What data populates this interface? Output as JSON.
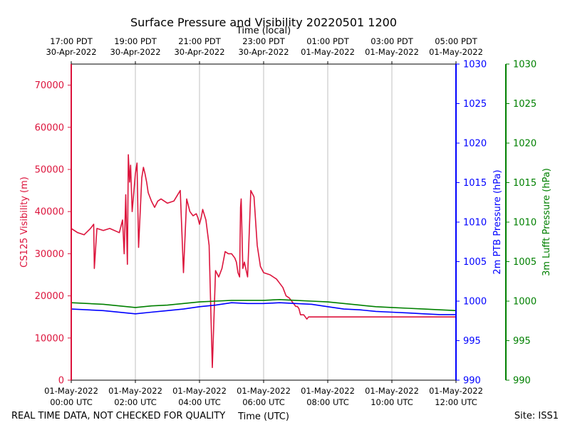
{
  "chart_data": {
    "type": "line",
    "title": "Surface Pressure and Visibility 20220501 1200",
    "top_axis_label": "Time (local)",
    "bottom_axis_label": "Time (UTC)",
    "footer_left": "REAL TIME DATA, NOT CHECKED FOR QUALITY",
    "footer_right": "Site: ISS1",
    "x_range_hours": [
      0,
      12
    ],
    "grid": "vertical",
    "x_ticks": [
      {
        "hour": 0,
        "utc": [
          "01-May-2022",
          "00:00 UTC"
        ],
        "local": [
          "17:00 PDT",
          "30-Apr-2022"
        ]
      },
      {
        "hour": 2,
        "utc": [
          "01-May-2022",
          "02:00 UTC"
        ],
        "local": [
          "19:00 PDT",
          "30-Apr-2022"
        ]
      },
      {
        "hour": 4,
        "utc": [
          "01-May-2022",
          "04:00 UTC"
        ],
        "local": [
          "21:00 PDT",
          "30-Apr-2022"
        ]
      },
      {
        "hour": 6,
        "utc": [
          "01-May-2022",
          "06:00 UTC"
        ],
        "local": [
          "23:00 PDT",
          "30-Apr-2022"
        ]
      },
      {
        "hour": 8,
        "utc": [
          "01-May-2022",
          "08:00 UTC"
        ],
        "local": [
          "01:00 PDT",
          "01-May-2022"
        ]
      },
      {
        "hour": 10,
        "utc": [
          "01-May-2022",
          "10:00 UTC"
        ],
        "local": [
          "03:00 PDT",
          "01-May-2022"
        ]
      },
      {
        "hour": 12,
        "utc": [
          "01-May-2022",
          "12:00 UTC"
        ],
        "local": [
          "05:00 PDT",
          "01-May-2022"
        ]
      }
    ],
    "y_left": {
      "label": "CS125 Visibility (m)",
      "color": "#dc143c",
      "range": [
        0,
        75000
      ],
      "ticks": [
        "0",
        "10000",
        "20000",
        "30000",
        "40000",
        "50000",
        "60000",
        "70000"
      ],
      "tick_values": [
        0,
        10000,
        20000,
        30000,
        40000,
        50000,
        60000,
        70000
      ]
    },
    "y_right": {
      "label": "2m PTB Pressure (hPa)",
      "color": "#0000ff",
      "range": [
        990,
        1030
      ],
      "ticks": [
        "990",
        "995",
        "1000",
        "1005",
        "1010",
        "1015",
        "1020",
        "1025",
        "1030"
      ],
      "tick_values": [
        990,
        995,
        1000,
        1005,
        1010,
        1015,
        1020,
        1025,
        1030
      ]
    },
    "y_right2": {
      "label": "3m Lufft Pressure (hPa)",
      "color": "#008000",
      "range": [
        990,
        1030
      ],
      "ticks": [
        "990",
        "995",
        "1000",
        "1005",
        "1010",
        "1015",
        "1020",
        "1025",
        "1030"
      ],
      "tick_values": [
        990,
        995,
        1000,
        1005,
        1010,
        1015,
        1020,
        1025,
        1030
      ]
    },
    "series": [
      {
        "name": "CS125 Visibility",
        "axis": "left",
        "color": "#dc143c",
        "x": [
          0,
          0.2,
          0.4,
          0.6,
          0.7,
          0.72,
          0.8,
          1.0,
          1.2,
          1.5,
          1.6,
          1.65,
          1.7,
          1.75,
          1.78,
          1.82,
          1.85,
          1.9,
          2.0,
          2.05,
          2.1,
          2.2,
          2.25,
          2.3,
          2.35,
          2.4,
          2.5,
          2.6,
          2.7,
          2.8,
          3.0,
          3.2,
          3.4,
          3.5,
          3.6,
          3.7,
          3.8,
          3.9,
          3.95,
          4.0,
          4.05,
          4.1,
          4.2,
          4.3,
          4.4,
          4.5,
          4.6,
          4.7,
          4.8,
          4.9,
          5.0,
          5.1,
          5.15,
          5.2,
          5.25,
          5.28,
          5.3,
          5.35,
          5.4,
          5.5,
          5.6,
          5.7,
          5.8,
          5.9,
          6.0,
          6.2,
          6.3,
          6.4,
          6.5,
          6.6,
          6.7,
          6.8,
          6.85,
          6.9,
          6.95,
          7.0,
          7.05,
          7.1,
          7.15,
          7.2,
          7.25,
          7.3,
          7.35,
          7.4,
          7.5,
          7.6,
          7.7,
          7.8,
          8.0,
          8.2,
          8.4,
          8.6,
          8.8,
          9.0,
          9.2,
          9.4,
          9.6,
          9.8,
          10.0,
          10.2,
          10.4,
          10.6,
          10.8,
          11.0,
          11.2,
          11.4,
          11.6,
          11.8,
          12.0
        ],
        "values": [
          36000,
          35000,
          34500,
          36000,
          37000,
          26500,
          36000,
          35500,
          36000,
          35000,
          38000,
          30000,
          44000,
          27500,
          53500,
          47000,
          51000,
          40000,
          49000,
          51500,
          31500,
          48000,
          50500,
          49000,
          47000,
          44500,
          42500,
          41000,
          42500,
          43000,
          42000,
          42500,
          45000,
          25500,
          43000,
          40000,
          39000,
          39500,
          38500,
          37000,
          38500,
          40500,
          38000,
          32000,
          3000,
          26000,
          24500,
          26500,
          30500,
          30000,
          30000,
          29000,
          28000,
          25500,
          24500,
          41000,
          43000,
          26500,
          28000,
          24500,
          45000,
          43500,
          32000,
          27000,
          25500,
          25000,
          24500,
          24000,
          23000,
          22000,
          20000,
          19500,
          19000,
          18500,
          18000,
          17500,
          17500,
          17000,
          15500,
          15500,
          15500,
          15000,
          14500,
          15000,
          15000,
          15000,
          15000,
          15000,
          15000,
          15000,
          15000,
          15000,
          15000,
          15000,
          15000,
          15000,
          15000,
          15000,
          15000,
          15000,
          15000,
          15000,
          15000,
          15000,
          15000,
          15000,
          15000,
          15000,
          15000
        ]
      },
      {
        "name": "2m PTB Pressure",
        "axis": "right",
        "color": "#0000ff",
        "x": [
          0,
          1,
          2,
          2.5,
          3,
          3.5,
          4,
          4.5,
          5,
          5.5,
          6,
          6.5,
          7,
          7.5,
          8,
          8.5,
          9,
          9.5,
          10,
          10.5,
          11,
          11.5,
          12
        ],
        "values": [
          999.0,
          998.8,
          998.4,
          998.6,
          998.8,
          999.0,
          999.3,
          999.5,
          999.8,
          999.7,
          999.7,
          999.8,
          999.7,
          999.6,
          999.3,
          999.0,
          998.9,
          998.7,
          998.6,
          998.5,
          998.4,
          998.3,
          998.3
        ]
      },
      {
        "name": "3m Lufft Pressure",
        "axis": "right2",
        "color": "#008000",
        "x": [
          0,
          1,
          2,
          2.5,
          3,
          3.5,
          4,
          4.5,
          5,
          5.5,
          6,
          6.5,
          7,
          7.5,
          8,
          8.5,
          9,
          9.5,
          10,
          10.5,
          11,
          11.5,
          12
        ],
        "values": [
          999.8,
          999.6,
          999.2,
          999.4,
          999.5,
          999.7,
          999.9,
          1000.0,
          1000.1,
          1000.1,
          1000.1,
          1000.2,
          1000.1,
          1000.0,
          999.9,
          999.7,
          999.5,
          999.3,
          999.2,
          999.1,
          999.0,
          998.9,
          998.8
        ]
      }
    ]
  }
}
